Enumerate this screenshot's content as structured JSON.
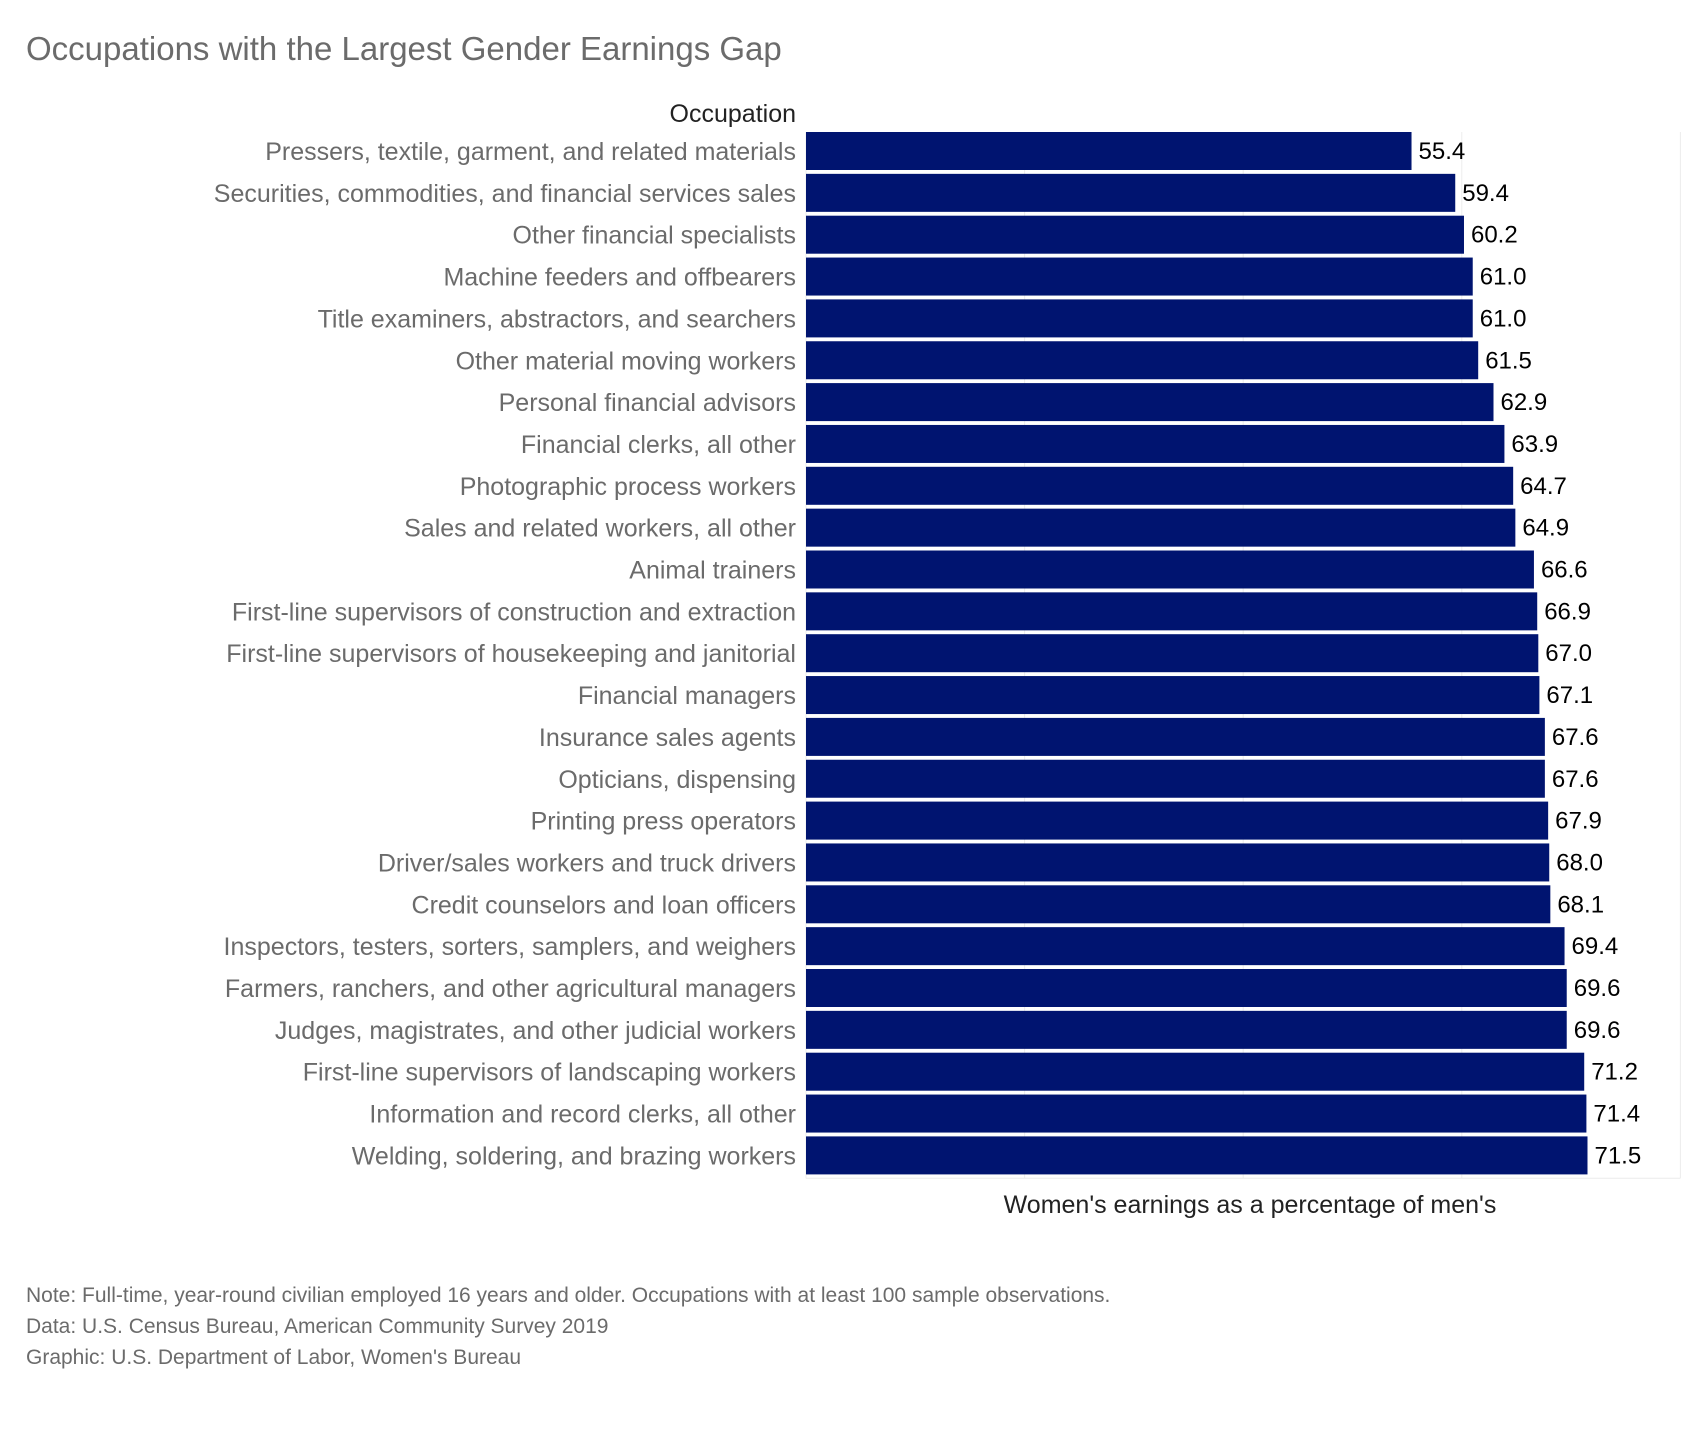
{
  "title": "Occupations with the Largest Gender Earnings Gap",
  "chart_data": {
    "type": "bar",
    "orientation": "horizontal",
    "title": "Occupations with the Largest Gender Earnings Gap",
    "ylabel": "Occupation",
    "xlabel": "Women's earnings as a percentage of men's",
    "xlim": [
      0,
      80
    ],
    "grid": true,
    "bar_color": "#001470",
    "categories": [
      "Pressers, textile, garment, and related materials",
      "Securities, commodities, and financial services sales",
      "Other financial specialists",
      "Machine feeders and offbearers",
      "Title examiners, abstractors, and searchers",
      "Other material moving workers",
      "Personal financial advisors",
      "Financial clerks, all other",
      "Photographic process workers",
      "Sales and related workers, all other",
      "Animal trainers",
      "First-line supervisors of construction and extraction",
      "First-line supervisors of housekeeping and janitorial",
      "Financial managers",
      "Insurance sales agents",
      "Opticians, dispensing",
      "Printing press operators",
      "Driver/sales workers and truck drivers",
      "Credit counselors and loan officers",
      "Inspectors, testers, sorters, samplers, and weighers",
      "Farmers, ranchers, and other agricultural managers",
      "Judges, magistrates, and other judicial workers",
      "First-line supervisors of landscaping workers",
      "Information and record clerks, all other",
      "Welding, soldering, and brazing workers"
    ],
    "values": [
      55.4,
      59.4,
      60.2,
      61.0,
      61.0,
      61.5,
      62.9,
      63.9,
      64.7,
      64.9,
      66.6,
      66.9,
      67.0,
      67.1,
      67.6,
      67.6,
      67.9,
      68.0,
      68.1,
      69.4,
      69.6,
      69.6,
      71.2,
      71.4,
      71.5
    ],
    "value_labels": [
      "55.4",
      "59.4",
      "60.2",
      "61.0",
      "61.0",
      "61.5",
      "62.9",
      "63.9",
      "64.7",
      "64.9",
      "66.6",
      "66.9",
      "67.0",
      "67.1",
      "67.6",
      "67.6",
      "67.9",
      "68.0",
      "68.1",
      "69.4",
      "69.6",
      "69.6",
      "71.2",
      "71.4",
      "71.5"
    ]
  },
  "notes": {
    "note": "Note: Full-time, year-round civilian employed 16 years and older. Occupations with at least 100 sample observations.",
    "data": "Data: U.S. Census Bureau, American Community Survey 2019",
    "graphic": "Graphic: U.S. Department of Labor, Women's Bureau"
  }
}
